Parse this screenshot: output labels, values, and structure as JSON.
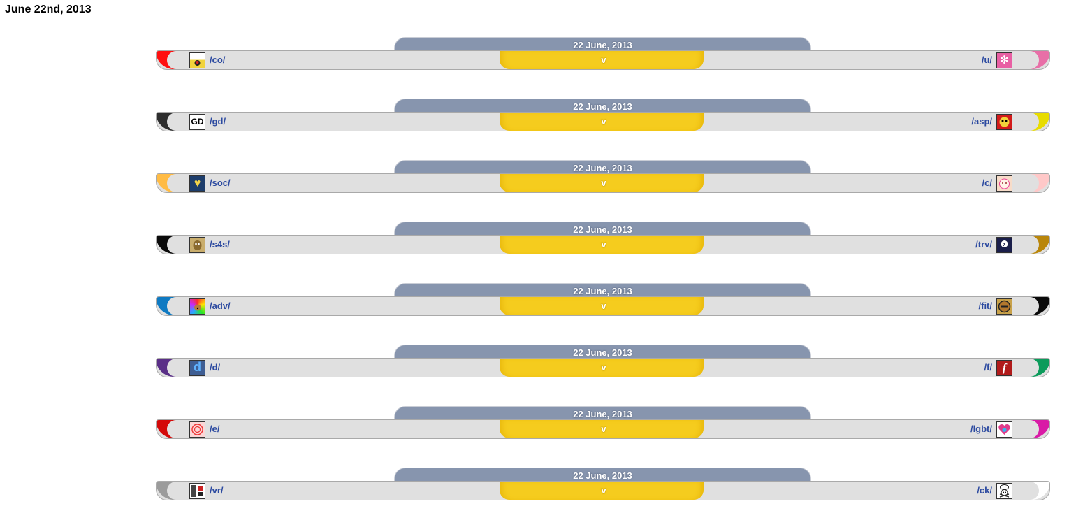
{
  "page": {
    "heading": "June 22nd, 2013"
  },
  "matches": [
    {
      "date": "22 June, 2013",
      "vs": "v",
      "left": {
        "board": "/co/",
        "color": "#ff1010",
        "icon": "comics-cartoons-icon",
        "icon_text": "",
        "icon_bg": "#f1d33b"
      },
      "right": {
        "board": "/u/",
        "color": "#e86fa7",
        "icon": "snowflake-icon",
        "icon_text": "✻",
        "icon_bg": "#e85fa3"
      }
    },
    {
      "date": "22 June, 2013",
      "vs": "v",
      "left": {
        "board": "/gd/",
        "color": "#2e2e2e",
        "icon": "gd-logo-icon",
        "icon_text": "GD",
        "icon_bg": "#ffffff"
      },
      "right": {
        "board": "/asp/",
        "color": "#e8dc00",
        "icon": "mascot-icon",
        "icon_text": "",
        "icon_bg": "#d21b1b"
      }
    },
    {
      "date": "22 June, 2013",
      "vs": "v",
      "left": {
        "board": "/soc/",
        "color": "#ffbb44",
        "icon": "heart-balloon-icon",
        "icon_text": "♥",
        "icon_bg": "#1d3d6b"
      },
      "right": {
        "board": "/c/",
        "color": "#ffc8c8",
        "icon": "cute-face-icon",
        "icon_text": "",
        "icon_bg": "#f7dcc9"
      }
    },
    {
      "date": "22 June, 2013",
      "vs": "v",
      "left": {
        "board": "/s4s/",
        "color": "#0a0a0a",
        "icon": "pepe-face-icon",
        "icon_text": "",
        "icon_bg": "#c9ad6c"
      },
      "right": {
        "board": "/trv/",
        "color": "#b9860b",
        "icon": "globe-icon",
        "icon_text": "",
        "icon_bg": "#1a1e4a"
      }
    },
    {
      "date": "22 June, 2013",
      "vs": "v",
      "left": {
        "board": "/adv/",
        "color": "#0f7ac2",
        "icon": "advice-dog-icon",
        "icon_text": "",
        "icon_bg": "#e94bd0"
      },
      "right": {
        "board": "/fit/",
        "color": "#0a0a0a",
        "icon": "fitness-emblem-icon",
        "icon_text": "",
        "icon_bg": "#c9a24a"
      }
    },
    {
      "date": "22 June, 2013",
      "vs": "v",
      "left": {
        "board": "/d/",
        "color": "#5a2f87",
        "icon": "d-logo-icon",
        "icon_text": "d",
        "icon_bg": "#3f5e93"
      },
      "right": {
        "board": "/f/",
        "color": "#0c9b5b",
        "icon": "flash-logo-icon",
        "icon_text": "f",
        "icon_bg": "#b11b1b"
      }
    },
    {
      "date": "22 June, 2013",
      "vs": "v",
      "left": {
        "board": "/e/",
        "color": "#d40a0a",
        "icon": "spiral-emblem-icon",
        "icon_text": "",
        "icon_bg": "#fbd7d7"
      },
      "right": {
        "board": "/lgbt/",
        "color": "#d91aa6",
        "icon": "rainbow-heart-icon",
        "icon_text": "",
        "icon_bg": "#79c3e8"
      }
    },
    {
      "date": "22 June, 2013",
      "vs": "v",
      "left": {
        "board": "/vr/",
        "color": "#9b9b9b",
        "icon": "arcade-cabinet-icon",
        "icon_text": "",
        "icon_bg": "#ffffff"
      },
      "right": {
        "board": "/ck/",
        "color": "#ffffff",
        "icon": "chef-skull-icon",
        "icon_text": "",
        "icon_bg": "#ffffff"
      }
    }
  ]
}
